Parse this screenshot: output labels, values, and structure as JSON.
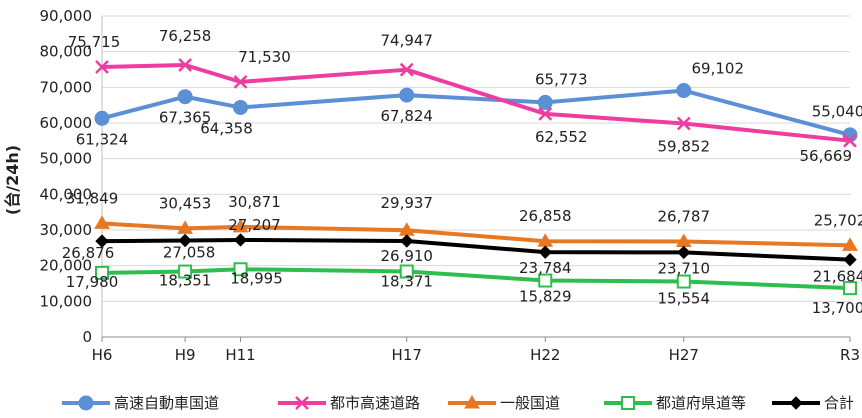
{
  "chart_data": {
    "type": "line",
    "title": "",
    "xlabel": "",
    "ylabel": "(台/24h)",
    "ylim": [
      0,
      90000
    ],
    "yticks": [
      "0",
      "10,000",
      "20,000",
      "30,000",
      "40,000",
      "50,000",
      "60,000",
      "70,000",
      "80,000",
      "90,000"
    ],
    "categories": [
      "H6",
      "H9",
      "H11",
      "H17",
      "H22",
      "H27",
      "R3"
    ],
    "x_years": [
      1994,
      1997,
      1999,
      2005,
      2010,
      2015,
      2021
    ],
    "grid": true,
    "legend_position": "bottom",
    "series": [
      {
        "name": "高速自動車国道",
        "values": [
          61324,
          67365,
          64358,
          67824,
          65773,
          69102,
          56669
        ],
        "labels": [
          "61,324",
          "67,365",
          "64,358",
          "67,824",
          "65,773",
          "69,102",
          "56,669"
        ],
        "color": "#5B8FD6",
        "marker": "circle"
      },
      {
        "name": "都市高速道路",
        "values": [
          75715,
          76258,
          71530,
          74947,
          62552,
          59852,
          55040
        ],
        "labels": [
          "75,715",
          "76,258",
          "71,530",
          "74,947",
          "62,552",
          "59,852",
          "55,040"
        ],
        "color": "#EE3DA0",
        "marker": "x"
      },
      {
        "name": "一般国道",
        "values": [
          31849,
          30453,
          30871,
          29937,
          26858,
          26787,
          25702
        ],
        "labels": [
          "31,849",
          "30,453",
          "30,871",
          "29,937",
          "26,858",
          "26,787",
          "25,702"
        ],
        "color": "#E87722",
        "marker": "triangle"
      },
      {
        "name": "都道府県道等",
        "values": [
          17980,
          18351,
          18995,
          18371,
          15829,
          15554,
          13700
        ],
        "labels": [
          "17,980",
          "18,351",
          "18,995",
          "18,371",
          "15,829",
          "15,554",
          "13,700"
        ],
        "color": "#2DBE4E",
        "marker": "square"
      },
      {
        "name": "合計",
        "values": [
          26876,
          27058,
          27207,
          26910,
          23784,
          23710,
          21684
        ],
        "labels": [
          "26,876",
          "27,058",
          "27,207",
          "26,910",
          "23,784",
          "23,710",
          "21,684"
        ],
        "color": "#000000",
        "marker": "diamond"
      }
    ]
  }
}
